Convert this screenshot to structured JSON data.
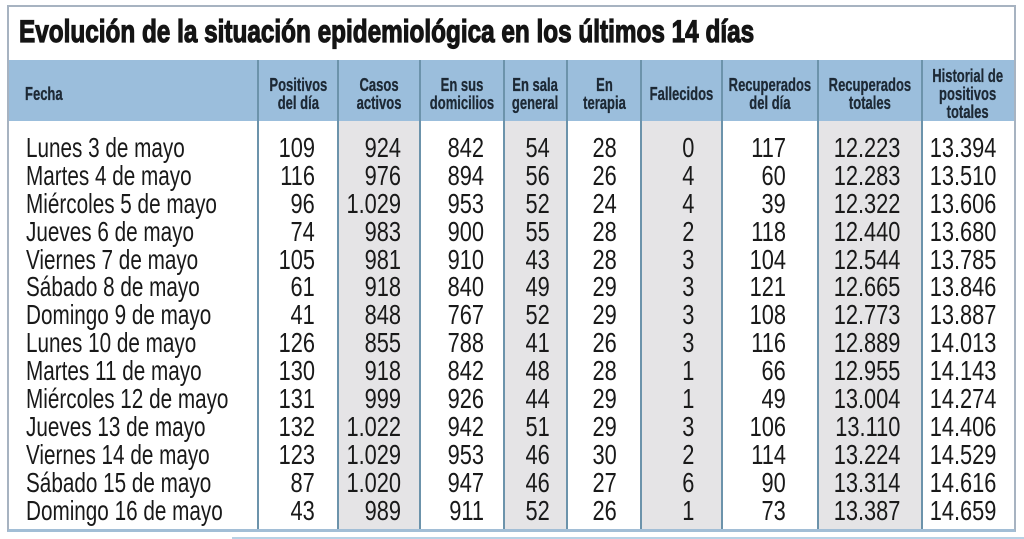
{
  "title": "Evolución de la situación epidemiológica en los últimos 14 días",
  "table": {
    "columns": [
      {
        "key": "fecha",
        "label": "Fecha"
      },
      {
        "key": "positivos_del_dia",
        "label": "Positivos\ndel día"
      },
      {
        "key": "casos_activos",
        "label": "Casos\nactivos"
      },
      {
        "key": "en_sus_domicilios",
        "label": "En sus\ndomicilios"
      },
      {
        "key": "en_sala_general",
        "label": "En sala\ngeneral"
      },
      {
        "key": "en_terapia",
        "label": "En\nterapia"
      },
      {
        "key": "fallecidos",
        "label": "Fallecidos"
      },
      {
        "key": "recuperados_del_dia",
        "label": "Recuperados\ndel día"
      },
      {
        "key": "recuperados_totales",
        "label": "Recuperados\ntotales"
      },
      {
        "key": "historial_de_positivos_totales",
        "label": "Historial de\npositivos\ntotales"
      }
    ],
    "shaded_columns": [
      "casos_activos",
      "en_sala_general",
      "fallecidos",
      "recuperados_totales"
    ],
    "rows": [
      [
        "Lunes 3 de mayo",
        "109",
        "924",
        "842",
        "54",
        "28",
        "0",
        "117",
        "12.223",
        "13.394"
      ],
      [
        "Martes 4 de mayo",
        "116",
        "976",
        "894",
        "56",
        "26",
        "4",
        "60",
        "12.283",
        "13.510"
      ],
      [
        "Miércoles 5 de mayo",
        "96",
        "1.029",
        "953",
        "52",
        "24",
        "4",
        "39",
        "12.322",
        "13.606"
      ],
      [
        "Jueves 6 de mayo",
        "74",
        "983",
        "900",
        "55",
        "28",
        "2",
        "118",
        "12.440",
        "13.680"
      ],
      [
        "Viernes 7 de mayo",
        "105",
        "981",
        "910",
        "43",
        "28",
        "3",
        "104",
        "12.544",
        "13.785"
      ],
      [
        "Sábado 8 de mayo",
        "61",
        "918",
        "840",
        "49",
        "29",
        "3",
        "121",
        "12.665",
        "13.846"
      ],
      [
        "Domingo 9 de mayo",
        "41",
        "848",
        "767",
        "52",
        "29",
        "3",
        "108",
        "12.773",
        "13.887"
      ],
      [
        "Lunes 10 de mayo",
        "126",
        "855",
        "788",
        "41",
        "26",
        "3",
        "116",
        "12.889",
        "14.013"
      ],
      [
        "Martes 11 de mayo",
        "130",
        "918",
        "842",
        "48",
        "28",
        "1",
        "66",
        "12.955",
        "14.143"
      ],
      [
        "Miércoles 12 de mayo",
        "131",
        "999",
        "926",
        "44",
        "29",
        "1",
        "49",
        "13.004",
        "14.274"
      ],
      [
        "Jueves 13 de mayo",
        "132",
        "1.022",
        "942",
        "51",
        "29",
        "3",
        "106",
        "13.110",
        "14.406"
      ],
      [
        "Viernes 14 de mayo",
        "123",
        "1.029",
        "953",
        "46",
        "30",
        "2",
        "114",
        "13.224",
        "14.529"
      ],
      [
        "Sábado 15 de mayo",
        "87",
        "1.020",
        "947",
        "46",
        "27",
        "6",
        "90",
        "13.314",
        "14.616"
      ],
      [
        "Domingo 16 de mayo",
        "43",
        "989",
        "911",
        "52",
        "26",
        "1",
        "73",
        "13.387",
        "14.659"
      ]
    ],
    "colors": {
      "header_background": "#9bbedc",
      "header_text": "#1d2935",
      "shaded_column_background": "#e5e4e6",
      "separator_line": "#6c93ab",
      "outer_border": "#a7b3c1",
      "bottom_border": "#a2bed6",
      "body_text": "#191919"
    }
  }
}
